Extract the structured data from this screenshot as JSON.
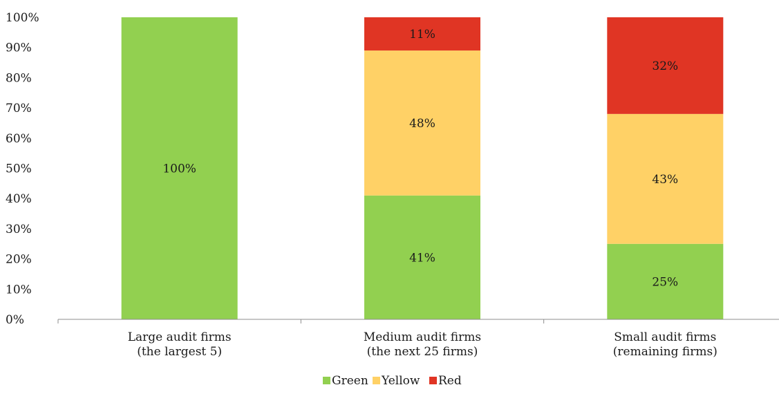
{
  "chart_data": {
    "type": "bar",
    "stacked": true,
    "categories": [
      [
        "Large audit firms",
        "(the largest 5)"
      ],
      [
        "Medium audit firms",
        "(the next 25 firms)"
      ],
      [
        "Small audit firms",
        "(remaining firms)"
      ]
    ],
    "series": [
      {
        "name": "Green",
        "color": "#92d050",
        "values": [
          100,
          41,
          25
        ],
        "labels": [
          "100%",
          "41%",
          "25%"
        ]
      },
      {
        "name": "Yellow",
        "color": "#ffd166",
        "values": [
          0,
          48,
          43
        ],
        "labels": [
          "",
          "48%",
          "43%"
        ]
      },
      {
        "name": "Red",
        "color": "#e03524",
        "values": [
          0,
          11,
          32
        ],
        "labels": [
          "",
          "11%",
          "32%"
        ]
      }
    ],
    "ylim": [
      0,
      100
    ],
    "y_ticks": [
      "0%",
      "10%",
      "20%",
      "30%",
      "40%",
      "50%",
      "60%",
      "70%",
      "80%",
      "90%",
      "100%"
    ],
    "grid": false,
    "legend": "bottom"
  }
}
